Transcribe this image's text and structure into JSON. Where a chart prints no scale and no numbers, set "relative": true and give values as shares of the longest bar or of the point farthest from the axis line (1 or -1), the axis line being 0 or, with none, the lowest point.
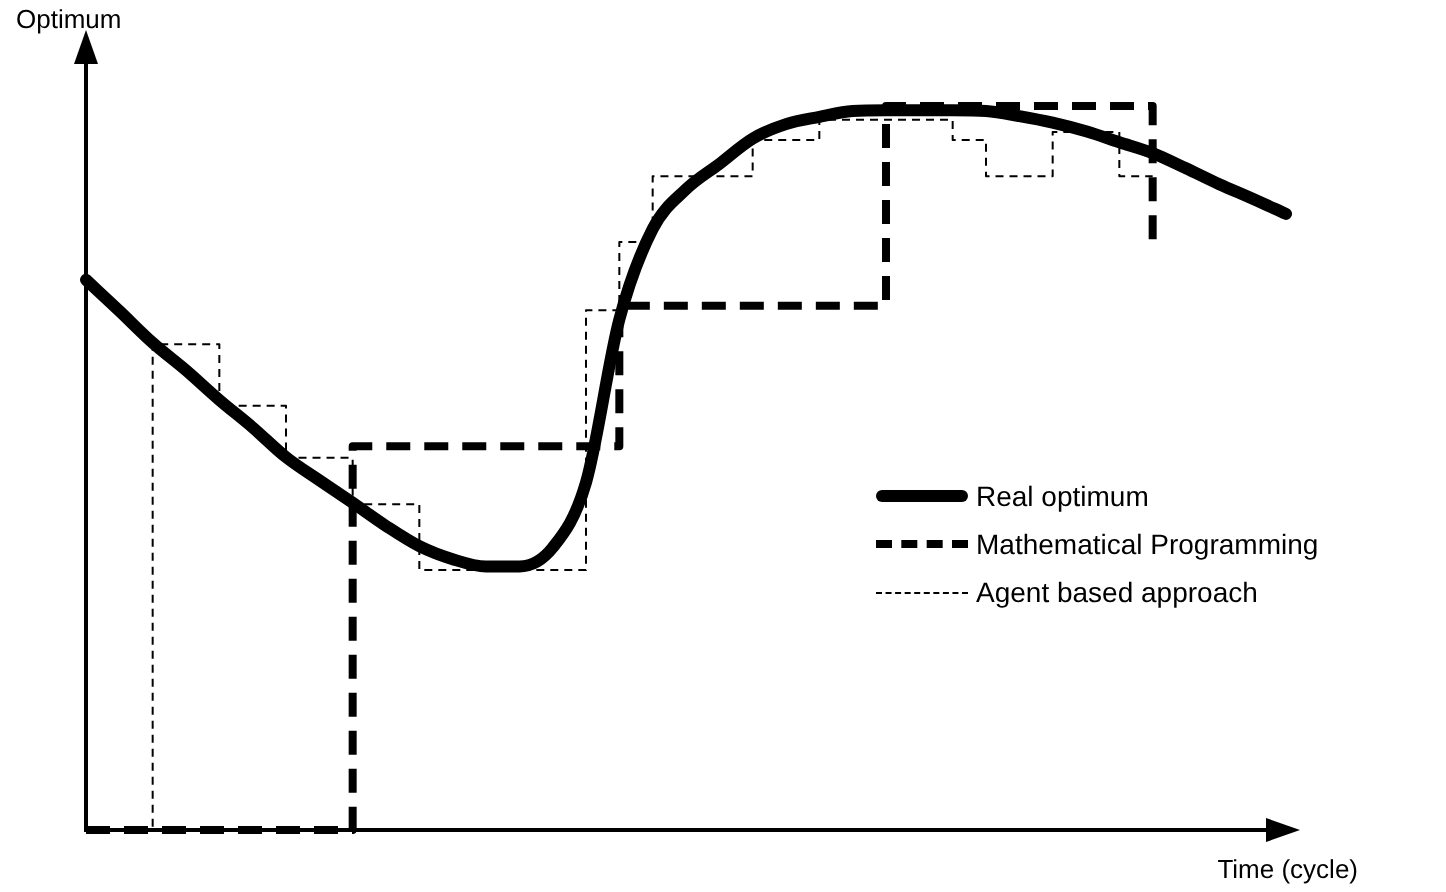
{
  "chart_data": {
    "type": "line",
    "relative": true,
    "xlabel": "Time (cycle)",
    "ylabel": "Optimum",
    "legend": "right",
    "marker": "none",
    "categories": [
      null,
      null,
      null,
      null,
      null,
      null,
      null,
      null,
      null,
      null,
      null,
      null,
      null,
      null,
      null,
      null,
      null,
      null,
      null,
      null,
      null,
      null,
      null,
      null,
      null,
      null,
      null,
      null,
      null,
      null,
      null,
      null,
      null,
      null,
      null,
      null,
      null
    ],
    "series": [
      {
        "name": "Real optimum",
        "color": "#000000",
        "line_style": "solid",
        "values": [
          0.76,
          0.717,
          0.673,
          0.635,
          0.594,
          0.556,
          0.515,
          0.483,
          0.452,
          0.42,
          0.392,
          0.374,
          0.364,
          0.364,
          0.39,
          0.48,
          0.705,
          0.83,
          0.885,
          0.92,
          0.955,
          0.975,
          0.985,
          0.993,
          0.994,
          0.994,
          0.994,
          0.993,
          0.986,
          0.977,
          0.965,
          0.95,
          0.935,
          0.914,
          0.892,
          0.872,
          0.851
        ]
      },
      {
        "name": "Mathematical Programming",
        "type": "step",
        "color": "#000000",
        "line_style": "dashed",
        "values": [
          0,
          0,
          0,
          0,
          0,
          0,
          0,
          0,
          0.53,
          0.53,
          0.53,
          0.53,
          0.53,
          0.53,
          0.53,
          0.53,
          0.724,
          0.724,
          0.724,
          0.724,
          0.724,
          0.724,
          0.724,
          0.724,
          1,
          1,
          1,
          1,
          1,
          1,
          1,
          1,
          0.815,
          null,
          null,
          null,
          null
        ]
      },
      {
        "name": "Agent based approach",
        "type": "step",
        "color": "#000000",
        "line_style": "dotted",
        "values": [
          0,
          0,
          0.671,
          0.671,
          0.586,
          0.586,
          0.514,
          0.514,
          0.45,
          0.45,
          0.359,
          0.359,
          0.359,
          0.359,
          0.359,
          0.718,
          0.812,
          0.903,
          0.903,
          0.903,
          0.953,
          0.953,
          0.981,
          0.981,
          0.981,
          0.981,
          0.953,
          0.903,
          0.903,
          0.964,
          0.964,
          0.903,
          0.903,
          null,
          null,
          null,
          null
        ]
      }
    ]
  }
}
